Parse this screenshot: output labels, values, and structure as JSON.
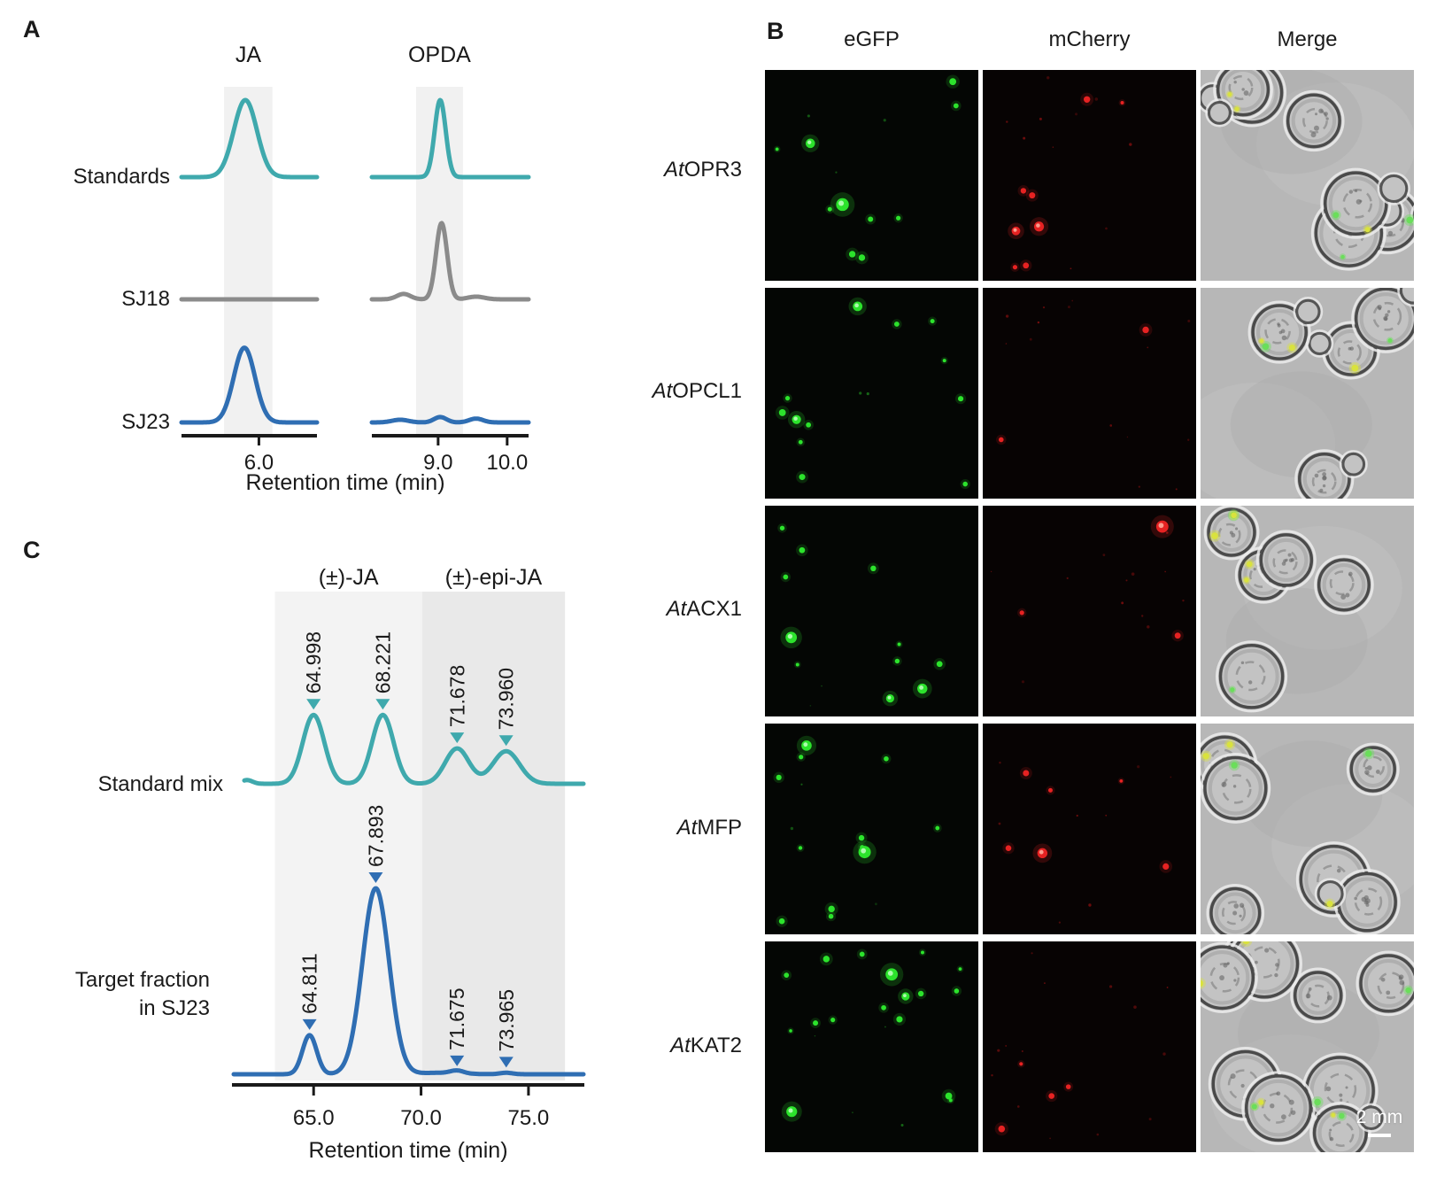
{
  "figure_labels": {
    "a": "A",
    "b": "B",
    "c": "C"
  },
  "panelB": {
    "columns": [
      "eGFP",
      "mCherry",
      "Merge"
    ],
    "rows": [
      {
        "prefix": "At",
        "name": "OPR3"
      },
      {
        "prefix": "At",
        "name": "OPCL1"
      },
      {
        "prefix": "At",
        "name": "ACX1"
      },
      {
        "prefix": "At",
        "name": "MFP"
      },
      {
        "prefix": "At",
        "name": "KAT2"
      }
    ],
    "scale_bar": "2 mm",
    "render": {
      "egfp": [
        {
          "dots": 8,
          "big": 2,
          "speckle": 3
        },
        {
          "dots": 10,
          "big": 2,
          "speckle": 2
        },
        {
          "dots": 8,
          "big": 3,
          "speckle": 2
        },
        {
          "dots": 10,
          "big": 2,
          "speckle": 3
        },
        {
          "dots": 14,
          "big": 3,
          "speckle": 4
        }
      ],
      "mcherry": [
        {
          "dots": 6,
          "big": 2,
          "speckle": 10
        },
        {
          "dots": 2,
          "big": 0,
          "speckle": 14
        },
        {
          "dots": 2,
          "big": 1,
          "speckle": 12
        },
        {
          "dots": 5,
          "big": 1,
          "speckle": 8
        },
        {
          "dots": 4,
          "big": 0,
          "speckle": 14
        }
      ],
      "merge": [
        {
          "cells": 6,
          "puncta": 6
        },
        {
          "cells": 4,
          "puncta": 5
        },
        {
          "cells": 5,
          "puncta": 6
        },
        {
          "cells": 6,
          "puncta": 5
        },
        {
          "cells": 9,
          "puncta": 9
        }
      ]
    }
  },
  "chart_data": [
    {
      "type": "line",
      "panel": "A",
      "xlabel": "Retention time (min)",
      "row_labels": [
        "Standards",
        "SJ18",
        "SJ23"
      ],
      "colors": {
        "Standards": "#3fa9ad",
        "SJ18": "#8b8b8b",
        "SJ23": "#2f6eb3"
      },
      "groups": [
        {
          "name": "JA",
          "x_range": [
            5.2,
            6.6
          ],
          "ticks": [
            6.0
          ],
          "shaded_band": [
            5.64,
            6.14
          ],
          "traces": [
            {
              "name": "Standards",
              "peaks": [
                {
                  "center": 5.86,
                  "height": 1.0,
                  "width": 0.12
                }
              ]
            },
            {
              "name": "SJ18",
              "peaks": []
            },
            {
              "name": "SJ23",
              "peaks": [
                {
                  "center": 5.85,
                  "height": 0.97,
                  "width": 0.11
                }
              ]
            }
          ]
        },
        {
          "name": "OPDA",
          "x_range": [
            8.04,
            10.31
          ],
          "ticks": [
            9.0,
            10.0
          ],
          "shaded_band": [
            8.68,
            9.36
          ],
          "traces": [
            {
              "name": "Standards",
              "peaks": [
                {
                  "center": 9.03,
                  "height": 1.0,
                  "width": 0.08
                }
              ]
            },
            {
              "name": "SJ18",
              "peaks": [
                {
                  "center": 8.5,
                  "height": 0.07,
                  "width": 0.1
                },
                {
                  "center": 9.05,
                  "height": 0.99,
                  "width": 0.08
                },
                {
                  "center": 9.55,
                  "height": 0.035,
                  "width": 0.12
                }
              ]
            },
            {
              "name": "SJ23",
              "peaks": [
                {
                  "center": 8.45,
                  "height": 0.035,
                  "width": 0.12
                },
                {
                  "center": 9.03,
                  "height": 0.07,
                  "width": 0.09
                },
                {
                  "center": 9.55,
                  "height": 0.05,
                  "width": 0.1
                }
              ]
            }
          ]
        }
      ]
    },
    {
      "type": "line",
      "panel": "C",
      "xlabel": "Retention time (min)",
      "x_range": [
        61.2,
        77.6
      ],
      "ticks": [
        65.0,
        70.0,
        75.0
      ],
      "regions": [
        {
          "label": "(±)-JA",
          "range": [
            63.2,
            70.05
          ],
          "color": "#f3f3f3"
        },
        {
          "label": "(±)-epi-JA",
          "range": [
            70.05,
            76.7
          ],
          "color": "#e9e9e9"
        }
      ],
      "traces": [
        {
          "name": "Standard mix",
          "color": "#3fa9ad",
          "peaks": [
            {
              "rt": 61.9,
              "height": 0.02,
              "width": 0.25
            },
            {
              "rt": 64.998,
              "label": "64.998",
              "height": 0.37,
              "width": 0.5
            },
            {
              "rt": 68.221,
              "label": "68.221",
              "height": 0.37,
              "width": 0.5
            },
            {
              "rt": 71.678,
              "label": "71.678",
              "height": 0.19,
              "width": 0.55
            },
            {
              "rt": 73.96,
              "label": "73.960",
              "height": 0.175,
              "width": 0.62
            }
          ]
        },
        {
          "name": "Target fraction in SJ23",
          "name_lines": [
            "Target fraction",
            "in SJ23"
          ],
          "color": "#2f6eb3",
          "peaks": [
            {
              "rt": 64.811,
              "label": "64.811",
              "height": 0.21,
              "width": 0.33
            },
            {
              "rt": 67.893,
              "label": "67.893",
              "height": 1.0,
              "width": 0.62
            },
            {
              "rt": 70.9,
              "height": 0.008,
              "width": 1.0
            },
            {
              "rt": 71.675,
              "label": "71.675",
              "height": 0.015,
              "width": 0.3
            },
            {
              "rt": 73.965,
              "label": "73.965",
              "height": 0.008,
              "width": 0.3
            }
          ]
        }
      ]
    }
  ]
}
